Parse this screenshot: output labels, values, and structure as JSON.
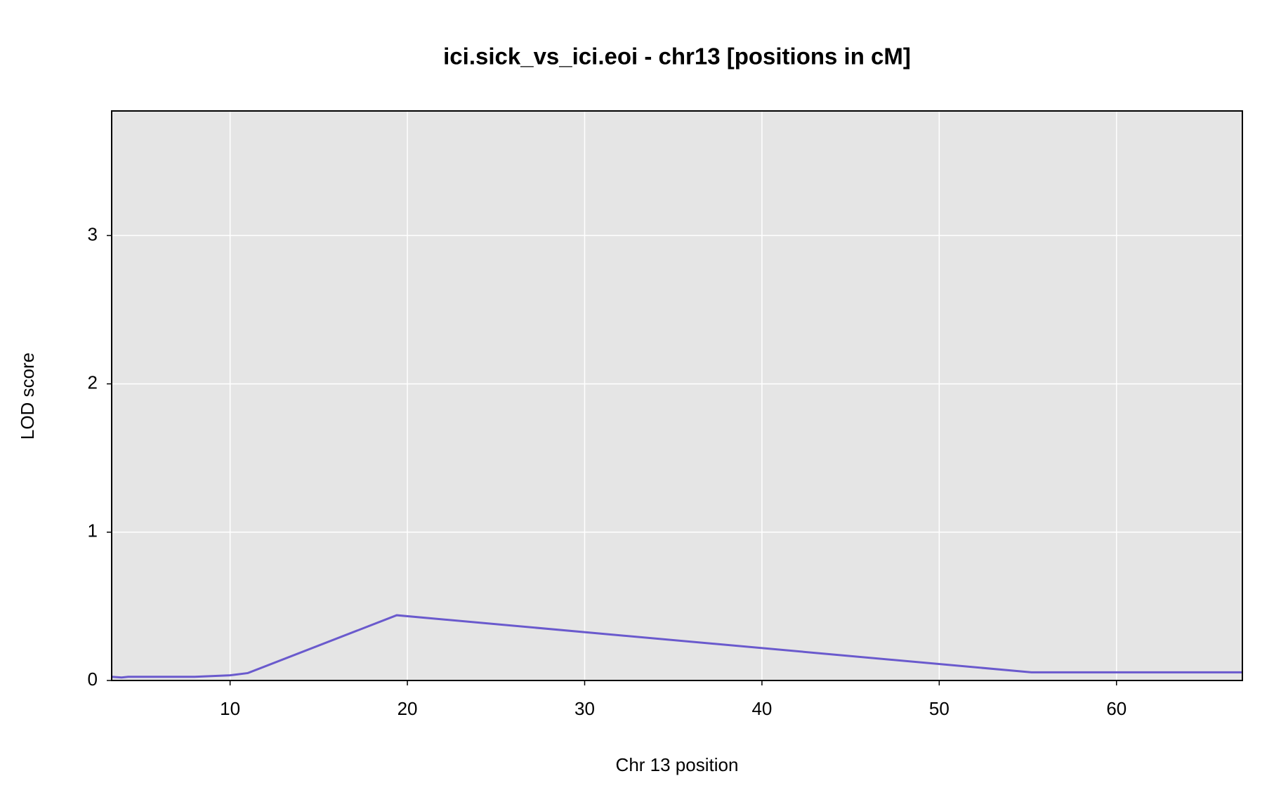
{
  "chart_data": {
    "type": "line",
    "title": "ici.sick_vs_ici.eoi - chr13 [positions in cM]",
    "xlabel": "Chr 13 position",
    "ylabel": "LOD score",
    "x": [
      3.32,
      3.88,
      4.25,
      8.0,
      10.0,
      11.0,
      19.4,
      55.2,
      67.1
    ],
    "series": [
      {
        "color": "#6a5acd",
        "values": [
          0.025,
          0.02,
          0.025,
          0.025,
          0.035,
          0.05,
          0.44,
          0.055,
          0.055
        ]
      }
    ],
    "xlim": [
      3.32,
      67.1
    ],
    "xticks": [
      10,
      20,
      30,
      40,
      50,
      60
    ],
    "ylim": [
      0,
      3.84
    ],
    "yticks": [
      0,
      1,
      2,
      3
    ],
    "grid": true
  }
}
